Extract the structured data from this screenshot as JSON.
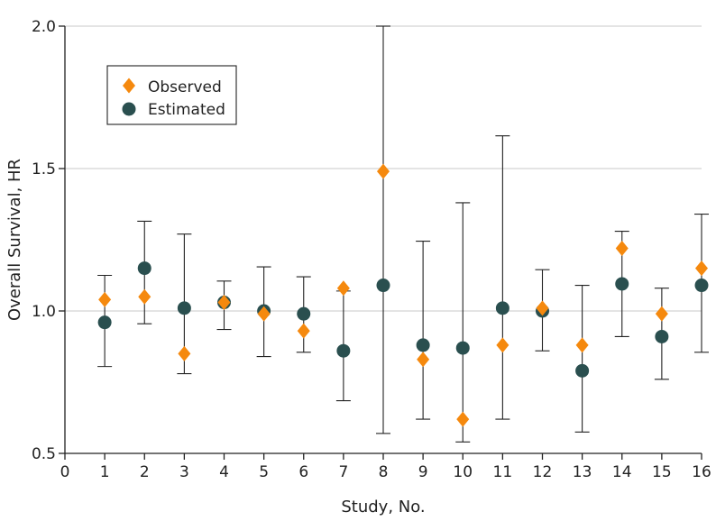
{
  "chart_data": {
    "type": "scatter",
    "xlabel": "Study, No.",
    "ylabel": "Overall Survival, HR",
    "xlim": [
      0,
      16
    ],
    "ylim": [
      0.5,
      2.0
    ],
    "x_ticks": [
      "0",
      "1",
      "2",
      "3",
      "4",
      "5",
      "6",
      "7",
      "8",
      "9",
      "10",
      "11",
      "12",
      "13",
      "14",
      "15",
      "16"
    ],
    "y_ticks": [
      "0.5",
      "1.0",
      "1.5",
      "2.0"
    ],
    "grid": "horizontal",
    "legend_position": "top-left",
    "x": [
      1,
      2,
      3,
      4,
      5,
      6,
      7,
      8,
      9,
      10,
      11,
      12,
      13,
      14,
      15,
      16
    ],
    "series": [
      {
        "name": "Observed",
        "marker": "diamond",
        "color": "#f5890e",
        "values": [
          1.04,
          1.05,
          0.85,
          1.03,
          0.99,
          0.93,
          1.08,
          1.49,
          0.83,
          0.62,
          0.88,
          1.01,
          0.88,
          1.22,
          0.99,
          1.15
        ]
      },
      {
        "name": "Estimated",
        "marker": "circle",
        "color": "#2a4f4f",
        "values": [
          0.96,
          1.15,
          1.01,
          1.03,
          1.0,
          0.99,
          0.86,
          1.09,
          0.88,
          0.87,
          1.01,
          1.0,
          0.79,
          1.095,
          0.91,
          1.09
        ],
        "ci_lower": [
          0.805,
          0.955,
          0.78,
          0.935,
          0.84,
          0.855,
          0.685,
          0.57,
          0.62,
          0.54,
          0.62,
          0.86,
          0.575,
          0.91,
          0.76,
          0.855
        ],
        "ci_upper": [
          1.125,
          1.315,
          1.27,
          1.105,
          1.155,
          1.12,
          1.07,
          2.0,
          1.245,
          1.38,
          1.615,
          1.145,
          1.09,
          1.28,
          1.08,
          1.34
        ]
      }
    ]
  }
}
